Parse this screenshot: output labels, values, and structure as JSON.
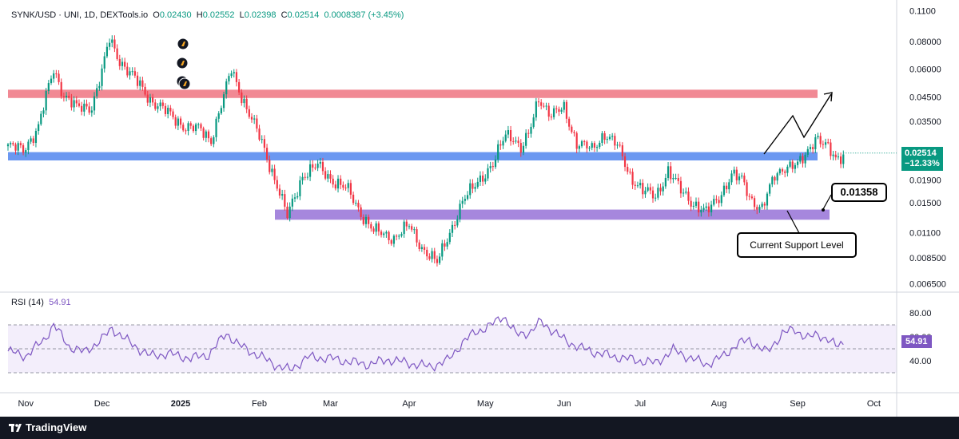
{
  "header": {
    "symbol": "SYNK/USD · UNI, 1D, DEXTools.io",
    "open_label": "O",
    "open": "0.02430",
    "high_label": "H",
    "high": "0.02552",
    "low_label": "L",
    "low": "0.02398",
    "close_label": "C",
    "close": "0.02514",
    "change": "0.0008387 (+3.45%)"
  },
  "price_axis": {
    "ticks": [
      "0.1100",
      "0.08000",
      "0.06000",
      "0.04500",
      "0.03500",
      "0.02500",
      "0.01900",
      "0.01500",
      "0.01100",
      "0.008500",
      "0.006500"
    ],
    "tick_values": [
      0.11,
      0.08,
      0.06,
      0.045,
      0.035,
      0.025,
      0.019,
      0.015,
      0.011,
      0.0085,
      0.0065
    ],
    "scale": "log"
  },
  "last_price": {
    "value": "0.02514",
    "change": "−12.33%"
  },
  "rsi": {
    "label": "RSI (14)",
    "value": "54.91",
    "ticks": [
      "80.00",
      "60.00",
      "40.00"
    ],
    "tick_values": [
      80,
      60,
      40
    ],
    "upper_band": 70,
    "middle_band": 50,
    "lower_band": 30
  },
  "time_axis": [
    "Nov",
    "Dec",
    "2025",
    "Feb",
    "Mar",
    "Apr",
    "May",
    "Jun",
    "Jul",
    "Aug",
    "Sep",
    "Oct"
  ],
  "annotations": {
    "target_label": "0.01358",
    "support_label": "Current Support Level"
  },
  "brand": {
    "name": "TradingView"
  },
  "colors": {
    "up": "#089981",
    "down": "#f23645",
    "resistance_zone": "#f07c88",
    "mid_zone": "#5b8def",
    "support_zone": "#9c7ad9",
    "rsi_line": "#7e57c2",
    "rsi_fill": "#f3eefb"
  },
  "chart_data": {
    "type": "candlestick",
    "x_range": [
      "2024-10-25",
      "2025-10-10"
    ],
    "y_scale": "log",
    "y_range": [
      0.006,
      0.115
    ],
    "zones": [
      {
        "name": "resistance",
        "low": 0.0445,
        "high": 0.0485
      },
      {
        "name": "mid",
        "low": 0.0233,
        "high": 0.0254
      },
      {
        "name": "support",
        "low": 0.0126,
        "high": 0.014
      }
    ],
    "price_path": [
      [
        "2024-10-25",
        0.027
      ],
      [
        "2024-10-31",
        0.026
      ],
      [
        "2024-11-06",
        0.033
      ],
      [
        "2024-11-09",
        0.045
      ],
      [
        "2024-11-12",
        0.06
      ],
      [
        "2024-11-16",
        0.046
      ],
      [
        "2024-11-21",
        0.04
      ],
      [
        "2024-11-27",
        0.041
      ],
      [
        "2024-12-01",
        0.058
      ],
      [
        "2024-12-04",
        0.082
      ],
      [
        "2024-12-08",
        0.066
      ],
      [
        "2024-12-14",
        0.054
      ],
      [
        "2024-12-20",
        0.044
      ],
      [
        "2024-12-27",
        0.038
      ],
      [
        "2025-01-03",
        0.033
      ],
      [
        "2025-01-09",
        0.032
      ],
      [
        "2025-01-13",
        0.029
      ],
      [
        "2025-01-18",
        0.045
      ],
      [
        "2025-01-21",
        0.06
      ],
      [
        "2025-01-27",
        0.04
      ],
      [
        "2025-02-02",
        0.028
      ],
      [
        "2025-02-08",
        0.018
      ],
      [
        "2025-02-12",
        0.013
      ],
      [
        "2025-02-18",
        0.02
      ],
      [
        "2025-02-24",
        0.022
      ],
      [
        "2025-03-02",
        0.019
      ],
      [
        "2025-03-08",
        0.017
      ],
      [
        "2025-03-14",
        0.013
      ],
      [
        "2025-03-18",
        0.0112
      ],
      [
        "2025-03-26",
        0.0105
      ],
      [
        "2025-04-01",
        0.0118
      ],
      [
        "2025-04-06",
        0.0095
      ],
      [
        "2025-04-12",
        0.008
      ],
      [
        "2025-04-16",
        0.0105
      ],
      [
        "2025-04-22",
        0.015
      ],
      [
        "2025-04-28",
        0.019
      ],
      [
        "2025-05-04",
        0.022
      ],
      [
        "2025-05-09",
        0.031
      ],
      [
        "2025-05-12",
        0.03
      ],
      [
        "2025-05-15",
        0.026
      ],
      [
        "2025-05-18",
        0.03
      ],
      [
        "2025-05-22",
        0.045
      ],
      [
        "2025-05-27",
        0.037
      ],
      [
        "2025-06-01",
        0.04
      ],
      [
        "2025-06-06",
        0.028
      ],
      [
        "2025-06-12",
        0.026
      ],
      [
        "2025-06-17",
        0.031
      ],
      [
        "2025-06-22",
        0.027
      ],
      [
        "2025-06-27",
        0.02
      ],
      [
        "2025-07-02",
        0.017
      ],
      [
        "2025-07-07",
        0.016
      ],
      [
        "2025-07-12",
        0.021
      ],
      [
        "2025-07-17",
        0.017
      ],
      [
        "2025-07-22",
        0.015
      ],
      [
        "2025-07-27",
        0.0135
      ],
      [
        "2025-08-01",
        0.016
      ],
      [
        "2025-08-06",
        0.02
      ],
      [
        "2025-08-10",
        0.019
      ],
      [
        "2025-08-14",
        0.0155
      ],
      [
        "2025-08-18",
        0.014
      ],
      [
        "2025-08-23",
        0.02
      ],
      [
        "2025-08-27",
        0.022
      ],
      [
        "2025-09-01",
        0.022
      ],
      [
        "2025-09-04",
        0.0245
      ],
      [
        "2025-09-08",
        0.03
      ],
      [
        "2025-09-12",
        0.027
      ],
      [
        "2025-09-16",
        0.0235
      ],
      [
        "2025-09-19",
        0.02514
      ]
    ],
    "rsi_path": [
      [
        "2024-10-25",
        48
      ],
      [
        "2024-11-01",
        44
      ],
      [
        "2024-11-08",
        57
      ],
      [
        "2024-11-12",
        70
      ],
      [
        "2024-11-18",
        52
      ],
      [
        "2024-11-24",
        47
      ],
      [
        "2024-12-01",
        58
      ],
      [
        "2024-12-05",
        67
      ],
      [
        "2024-12-12",
        55
      ],
      [
        "2024-12-20",
        44
      ],
      [
        "2024-12-27",
        46
      ],
      [
        "2025-01-05",
        42
      ],
      [
        "2025-01-12",
        45
      ],
      [
        "2025-01-19",
        63
      ],
      [
        "2025-01-24",
        53
      ],
      [
        "2025-02-01",
        44
      ],
      [
        "2025-02-08",
        36
      ],
      [
        "2025-02-13",
        32
      ],
      [
        "2025-02-20",
        43
      ],
      [
        "2025-03-01",
        42
      ],
      [
        "2025-03-09",
        39
      ],
      [
        "2025-03-16",
        37
      ],
      [
        "2025-03-24",
        41
      ],
      [
        "2025-04-01",
        38
      ],
      [
        "2025-04-09",
        35
      ],
      [
        "2025-04-16",
        40
      ],
      [
        "2025-04-22",
        55
      ],
      [
        "2025-04-27",
        64
      ],
      [
        "2025-05-03",
        69
      ],
      [
        "2025-05-08",
        78
      ],
      [
        "2025-05-13",
        62
      ],
      [
        "2025-05-19",
        64
      ],
      [
        "2025-05-23",
        73
      ],
      [
        "2025-05-31",
        59
      ],
      [
        "2025-06-07",
        51
      ],
      [
        "2025-06-15",
        46
      ],
      [
        "2025-06-22",
        43
      ],
      [
        "2025-07-01",
        40
      ],
      [
        "2025-07-07",
        38
      ],
      [
        "2025-07-14",
        49
      ],
      [
        "2025-07-20",
        43
      ],
      [
        "2025-07-27",
        37
      ],
      [
        "2025-08-03",
        44
      ],
      [
        "2025-08-08",
        54
      ],
      [
        "2025-08-13",
        57
      ],
      [
        "2025-08-20",
        47
      ],
      [
        "2025-08-26",
        63
      ],
      [
        "2025-08-31",
        66
      ],
      [
        "2025-09-05",
        59
      ],
      [
        "2025-09-09",
        62
      ],
      [
        "2025-09-13",
        58
      ],
      [
        "2025-09-16",
        52
      ],
      [
        "2025-09-19",
        54.91
      ]
    ]
  }
}
